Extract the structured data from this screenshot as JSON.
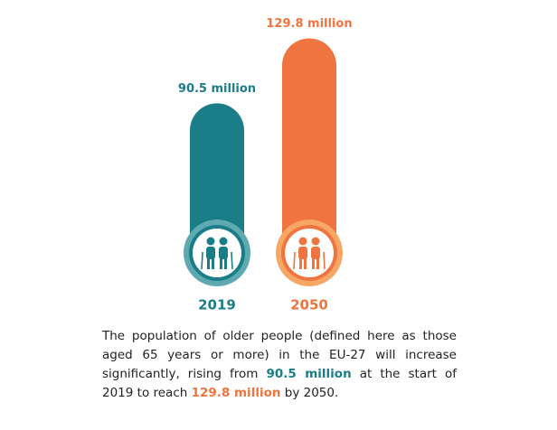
{
  "chart_data": {
    "type": "bar",
    "categories": [
      "2019",
      "2050"
    ],
    "values": [
      90.5,
      129.8
    ],
    "value_labels": [
      "90.5 million",
      "129.8 million"
    ],
    "colors": [
      "#1a7d88",
      "#ef7440"
    ],
    "caption": [
      "The population of older people (defined here as those aged 65 years or more) in the EU-27 will increase significantly, rising from ",
      " at the start of 2019 to reach ",
      " by 2050."
    ]
  }
}
